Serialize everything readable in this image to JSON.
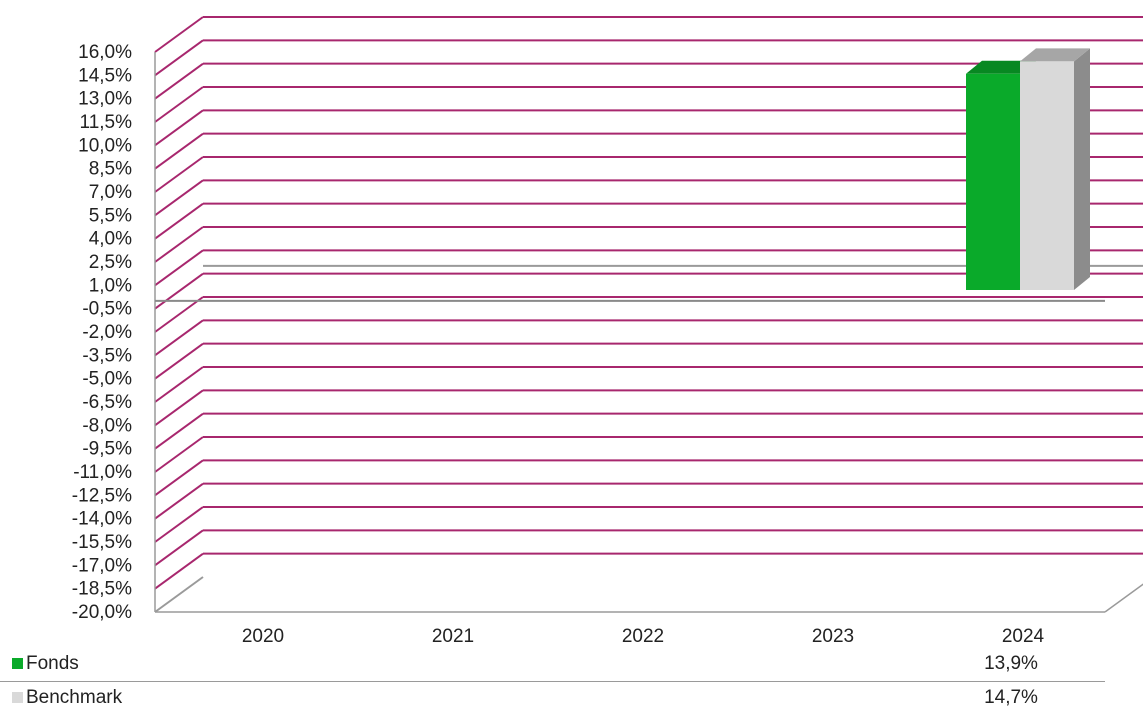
{
  "chart_data": {
    "type": "bar",
    "style": "3d-clustered-column",
    "categories": [
      "2020",
      "2021",
      "2022",
      "2023",
      "2024"
    ],
    "series": [
      {
        "name": "Fonds",
        "color": "#0aaa2a",
        "values": [
          null,
          null,
          null,
          null,
          13.9
        ],
        "labels": [
          "",
          "",
          "",
          "",
          "13,9%"
        ]
      },
      {
        "name": "Benchmark",
        "color": "#d9d9d9",
        "values": [
          null,
          null,
          null,
          null,
          14.7
        ],
        "labels": [
          "",
          "",
          "",
          "",
          "14,7%"
        ]
      }
    ],
    "ylim": [
      -20,
      16
    ],
    "ytick_step": 1.5,
    "y_ticks": [
      "16,0%",
      "14,5%",
      "13,0%",
      "11,5%",
      "10,0%",
      "8,5%",
      "7,0%",
      "5,5%",
      "4,0%",
      "2,5%",
      "1,0%",
      "-0,5%",
      "-2,0%",
      "-3,5%",
      "-5,0%",
      "-6,5%",
      "-8,0%",
      "-9,5%",
      "-11,0%",
      "-12,5%",
      "-14,0%",
      "-15,5%",
      "-17,0%",
      "-18,5%",
      "-20,0%"
    ],
    "gridline_color": "#a8276e",
    "grid": true,
    "title": "",
    "xlabel": "",
    "ylabel": "",
    "legend": "data-table-below"
  }
}
